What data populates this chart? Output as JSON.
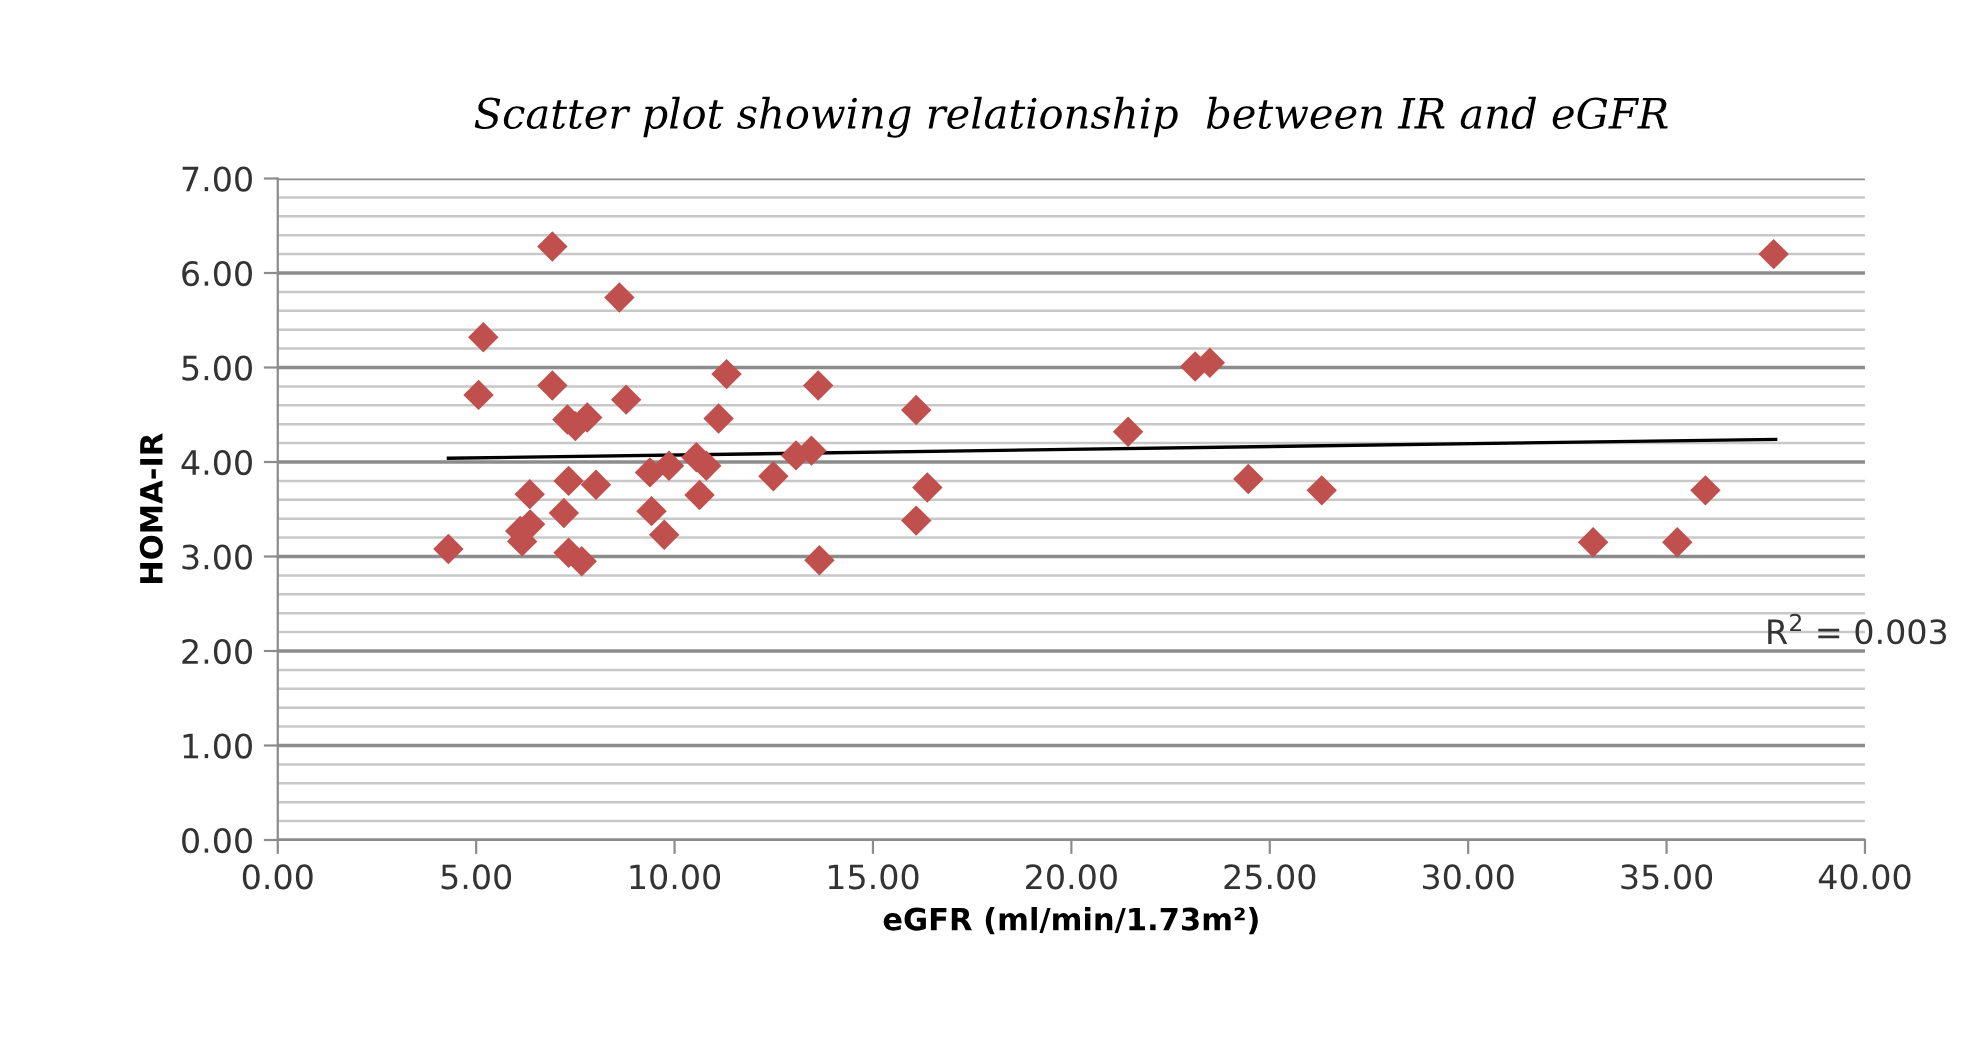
{
  "chart_data": {
    "type": "scatter",
    "title": "Scatter plot showing relationship  between IR and eGFR",
    "xlabel": "eGFR (ml/min/1.73m²)",
    "ylabel": "HOMA-IR",
    "series": [
      {
        "color": "#c0504d",
        "marker": "diamond",
        "x": [
          4.3,
          5.18,
          5.06,
          6.92,
          6.92,
          8.61,
          8.78,
          11.31,
          11.11,
          13.62,
          7.3,
          7.5,
          7.8,
          7.33,
          8.02,
          6.35,
          7.21,
          6.36,
          6.11,
          6.16,
          7.33,
          7.66,
          9.38,
          9.86,
          9.42,
          9.74,
          10.55,
          10.8,
          10.63,
          12.49,
          13.06,
          13.45,
          13.65,
          16.09,
          16.37,
          16.09,
          21.43,
          23.12,
          23.49,
          24.46,
          26.31,
          37.7,
          35.98,
          33.15,
          35.27
        ],
        "values": [
          3.08,
          5.32,
          4.71,
          6.28,
          4.81,
          5.74,
          4.66,
          4.93,
          4.46,
          4.81,
          4.45,
          4.38,
          4.47,
          3.8,
          3.76,
          3.66,
          3.46,
          3.34,
          3.27,
          3.16,
          3.04,
          2.95,
          3.89,
          3.96,
          3.48,
          3.23,
          4.05,
          3.96,
          3.65,
          3.85,
          4.07,
          4.12,
          2.96,
          4.55,
          3.73,
          3.38,
          4.32,
          5.01,
          5.05,
          3.82,
          3.7,
          6.2,
          3.7,
          3.15,
          3.15
        ]
      },
      {
        "type": "line",
        "color": "#000000",
        "marker": "none",
        "x": [
          4.3,
          37.75
        ],
        "values": [
          4.04,
          4.24
        ]
      }
    ],
    "annotations": [
      "R$^{2}$ = 0.003"
    ],
    "xlim": [
      0,
      40
    ],
    "ylim": [
      0,
      7
    ],
    "xticks": [
      {
        "value": 0,
        "label": "0.00"
      },
      {
        "value": 5,
        "label": "5.00"
      },
      {
        "value": 10,
        "label": "10.00"
      },
      {
        "value": 15,
        "label": "15.00"
      },
      {
        "value": 20,
        "label": "20.00"
      },
      {
        "value": 25,
        "label": "25.00"
      },
      {
        "value": 30,
        "label": "30.00"
      },
      {
        "value": 35,
        "label": "35.00"
      },
      {
        "value": 40,
        "label": "40.00"
      }
    ],
    "yticks": [
      {
        "value": 0,
        "label": "0.00"
      },
      {
        "value": 1,
        "label": "1.00"
      },
      {
        "value": 2,
        "label": "2.00"
      },
      {
        "value": 3,
        "label": "3.00"
      },
      {
        "value": 4,
        "label": "4.00"
      },
      {
        "value": 5,
        "label": "5.00"
      },
      {
        "value": 6,
        "label": "6.00"
      },
      {
        "value": 7,
        "label": "7.00"
      }
    ],
    "grid": "y",
    "legend": false
  }
}
